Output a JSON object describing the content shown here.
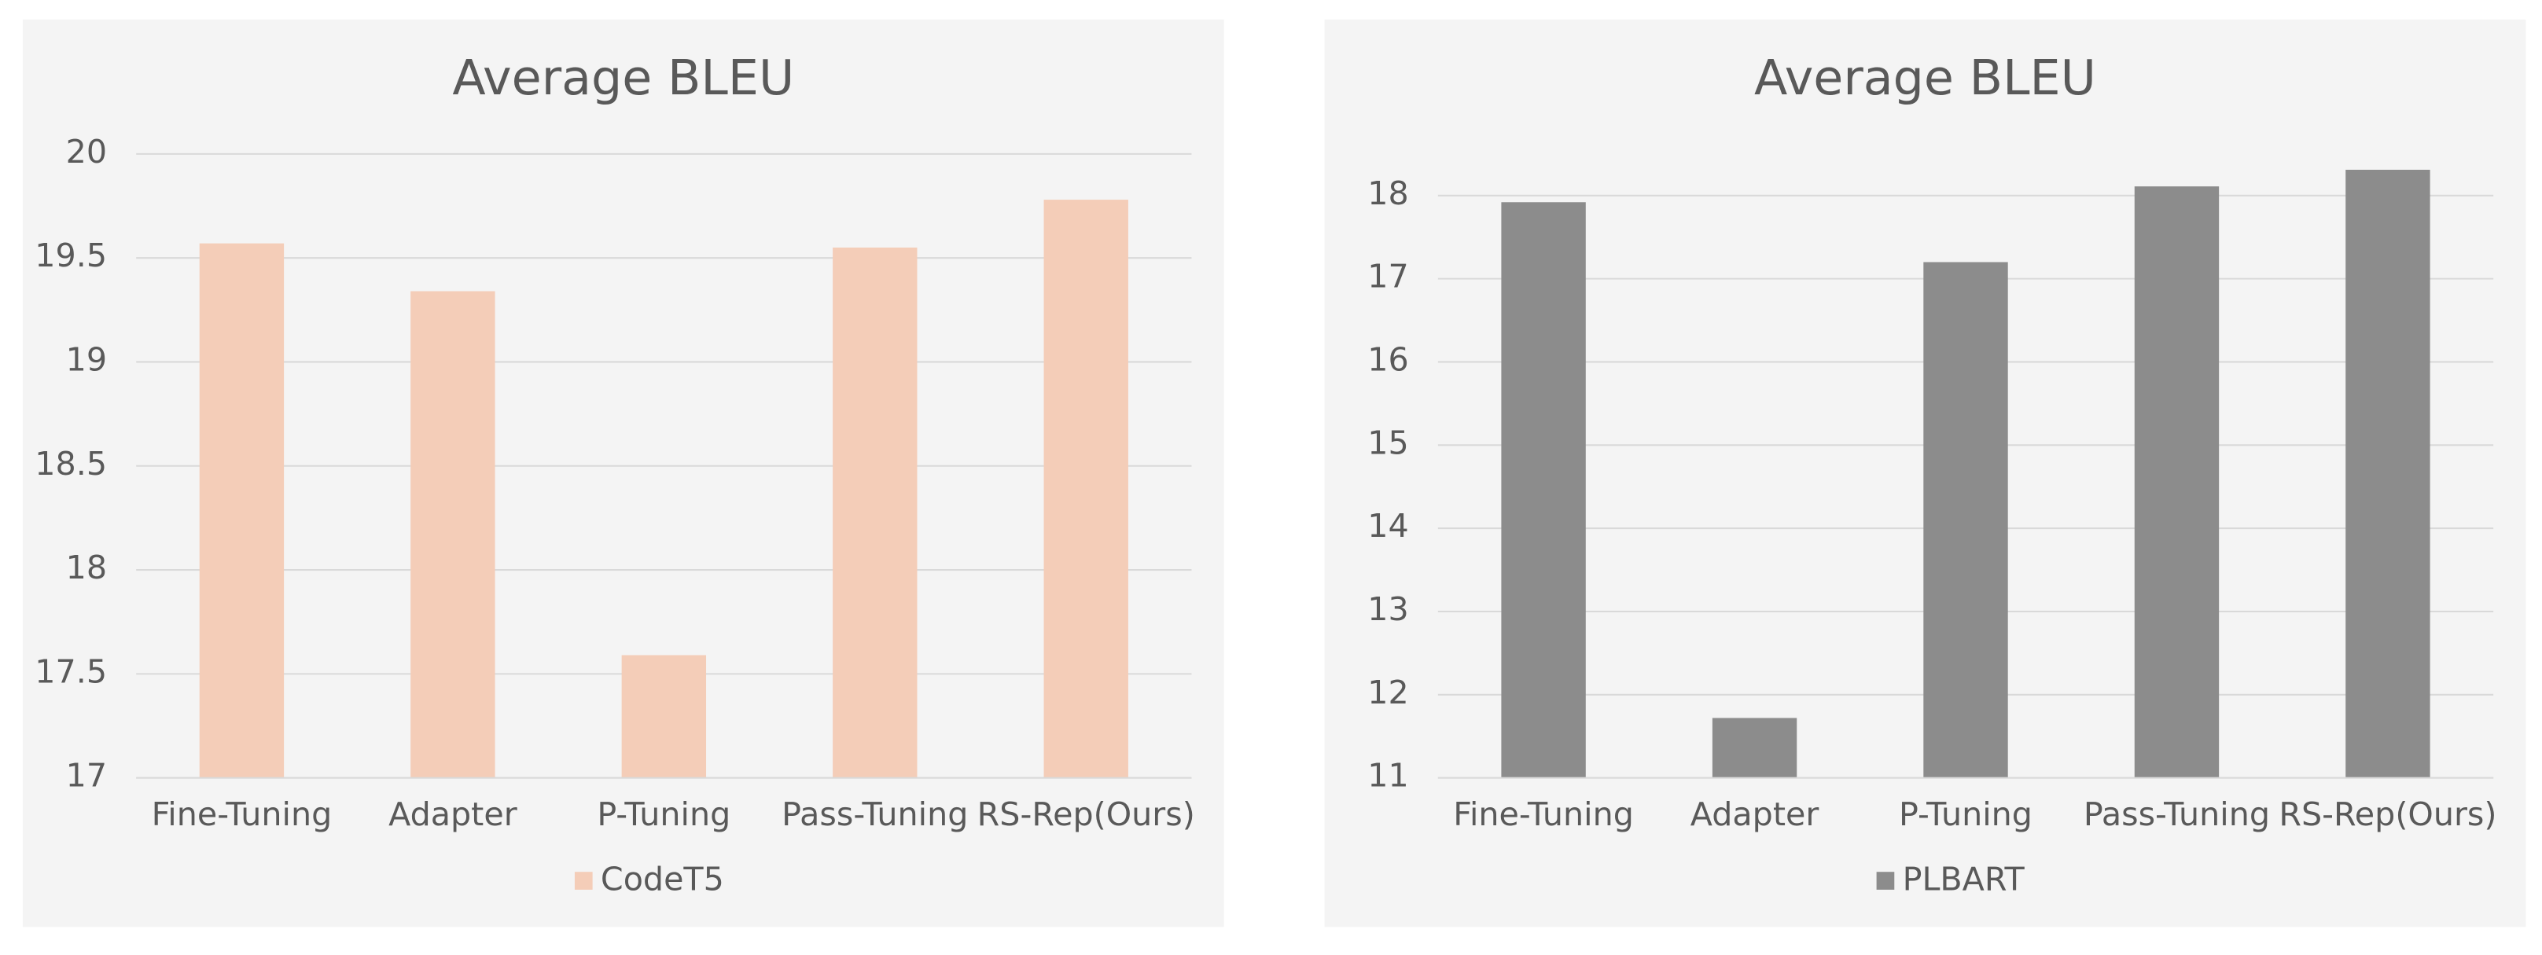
{
  "chart_data": [
    {
      "type": "bar",
      "title": "Average BLEU",
      "categories": [
        "Fine-Tuning",
        "Adapter",
        "P-Tuning",
        "Pass-Tuning",
        "RS-Rep(Ours)"
      ],
      "series": [
        {
          "name": "CodeT5",
          "color": "#f4cdb8",
          "values": [
            19.57,
            19.34,
            17.59,
            19.55,
            19.78
          ]
        }
      ],
      "ylim": [
        17,
        20
      ],
      "yticks": [
        17,
        17.5,
        18,
        18.5,
        19,
        19.5,
        20
      ],
      "grid": true,
      "legend": "bottom"
    },
    {
      "type": "bar",
      "title": "Average BLEU",
      "categories": [
        "Fine-Tuning",
        "Adapter",
        "P-Tuning",
        "Pass-Tuning",
        "RS-Rep(Ours)"
      ],
      "series": [
        {
          "name": "PLBART",
          "color": "#8c8c8c",
          "values": [
            17.92,
            11.72,
            17.2,
            18.11,
            18.31
          ]
        }
      ],
      "ylim": [
        11,
        18.5
      ],
      "yticks": [
        11,
        12,
        13,
        14,
        15,
        16,
        17,
        18
      ],
      "grid": true,
      "legend": "bottom"
    }
  ]
}
